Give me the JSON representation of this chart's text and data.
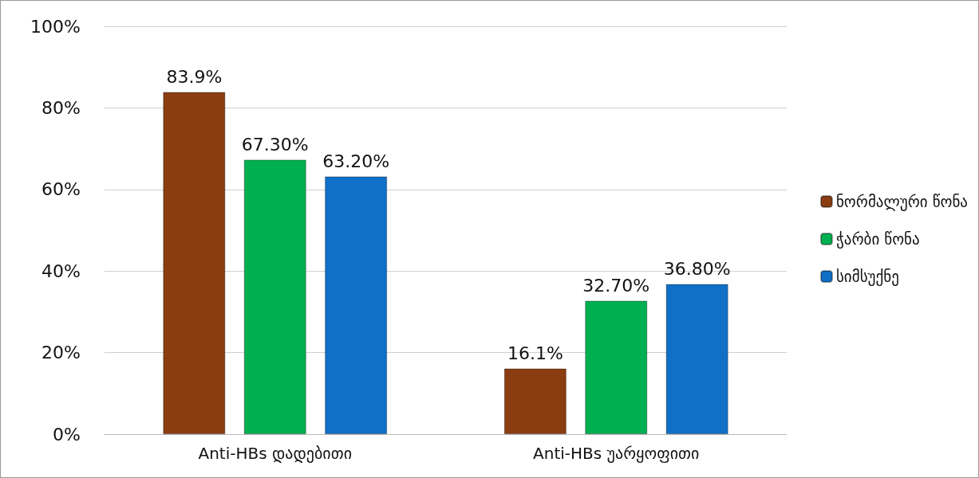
{
  "chart_data": {
    "type": "bar",
    "categories": [
      "Anti-HBs დადებითი",
      "Anti-HBs უარყოფითი"
    ],
    "series": [
      {
        "name": "ნორმალური წონა",
        "color": "#8b3d12",
        "values": [
          83.9,
          16.1
        ],
        "value_labels": [
          "83.9%",
          "16.1%"
        ]
      },
      {
        "name": "ჭარბი წონა",
        "color": "#00b050",
        "values": [
          67.3,
          32.7
        ],
        "value_labels": [
          "67.30%",
          "32.70%"
        ]
      },
      {
        "name": "სიმსუქნე",
        "color": "#1070c8",
        "values": [
          63.2,
          36.8
        ],
        "value_labels": [
          "63.20%",
          "36.80%"
        ]
      }
    ],
    "ylim": [
      0,
      100
    ],
    "yticks": [
      {
        "value": 0,
        "label": "0%"
      },
      {
        "value": 20,
        "label": "20%"
      },
      {
        "value": 40,
        "label": "40%"
      },
      {
        "value": 60,
        "label": "60%"
      },
      {
        "value": 80,
        "label": "80%"
      },
      {
        "value": 100,
        "label": "100%"
      }
    ],
    "grid": "y",
    "legend": "right"
  }
}
